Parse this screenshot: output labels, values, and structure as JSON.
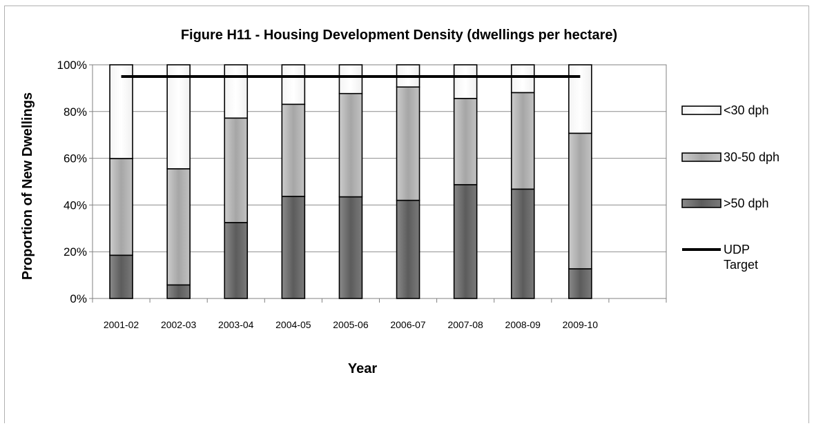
{
  "chart_data": {
    "type": "bar",
    "stacked": true,
    "title": "Figure H11 - Housing Development Density (dwellings per hectare)",
    "xlabel": "Year",
    "ylabel": "Proportion of New Dwellings",
    "ylim": [
      0,
      100
    ],
    "y_ticks": [
      "0%",
      "20%",
      "40%",
      "60%",
      "80%",
      "100%"
    ],
    "categories": [
      "2001-02",
      "2002-03",
      "2003-04",
      "2004-05",
      "2005-06",
      "2006-07",
      "2007-08",
      "2008-09",
      "2009-10",
      ""
    ],
    "series": [
      {
        "name": ">50 dph",
        "color": "#6e6e6e",
        "values": [
          18.5,
          5.8,
          32.5,
          43.7,
          43.5,
          42.0,
          48.7,
          46.8,
          12.7,
          null
        ]
      },
      {
        "name": "30-50 dph",
        "color": "#b4b4b4",
        "values": [
          41.4,
          49.7,
          44.7,
          39.4,
          44.2,
          48.5,
          36.9,
          41.3,
          58.0,
          null
        ]
      },
      {
        "name": "<30 dph",
        "color": "#ffffff",
        "values": [
          40.1,
          44.5,
          22.8,
          16.9,
          12.3,
          9.5,
          14.4,
          11.9,
          29.3,
          null
        ]
      }
    ],
    "target_line": {
      "name": "UDP Target",
      "value": 95,
      "color": "#000000"
    },
    "legend": {
      "position": "right",
      "entries": [
        {
          "label": "<30 dph",
          "kind": "box",
          "color": "#ffffff"
        },
        {
          "label": "30-50 dph",
          "kind": "box",
          "color": "#b4b4b4"
        },
        {
          "label": ">50 dph",
          "kind": "box",
          "color": "#6e6e6e"
        },
        {
          "label": "UDP Target",
          "kind": "line",
          "color": "#000000"
        }
      ]
    },
    "grid": true
  }
}
